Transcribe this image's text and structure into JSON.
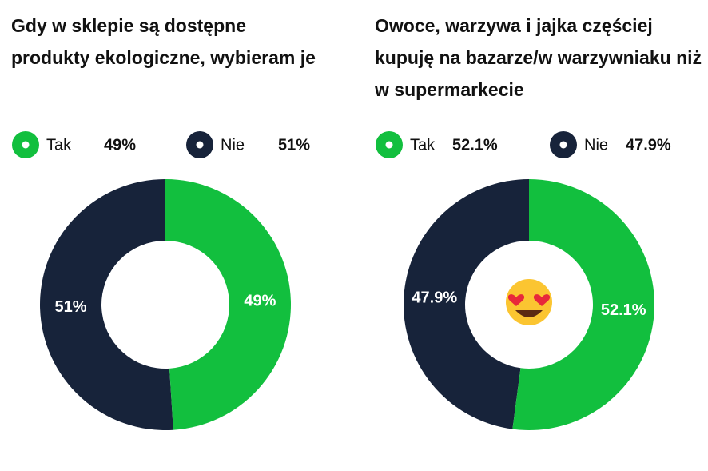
{
  "chart_data": [
    {
      "type": "pie",
      "title": "Gdy w sklepie są dostępne produkty ekologiczne, wybieram je",
      "categories": [
        "Tak",
        "Nie"
      ],
      "values": [
        49,
        51
      ],
      "value_labels": [
        "49%",
        "51%"
      ],
      "colors": [
        "#12bf3e",
        "#17233a"
      ]
    },
    {
      "type": "pie",
      "title": "Owoce, warzywa i jajka częściej kupuję na bazarze/w warzywniaku niż w supermarkecie",
      "categories": [
        "Tak",
        "Nie"
      ],
      "values": [
        52.1,
        47.9
      ],
      "value_labels": [
        "52.1%",
        "47.9%"
      ],
      "colors": [
        "#12bf3e",
        "#17233a"
      ]
    }
  ]
}
